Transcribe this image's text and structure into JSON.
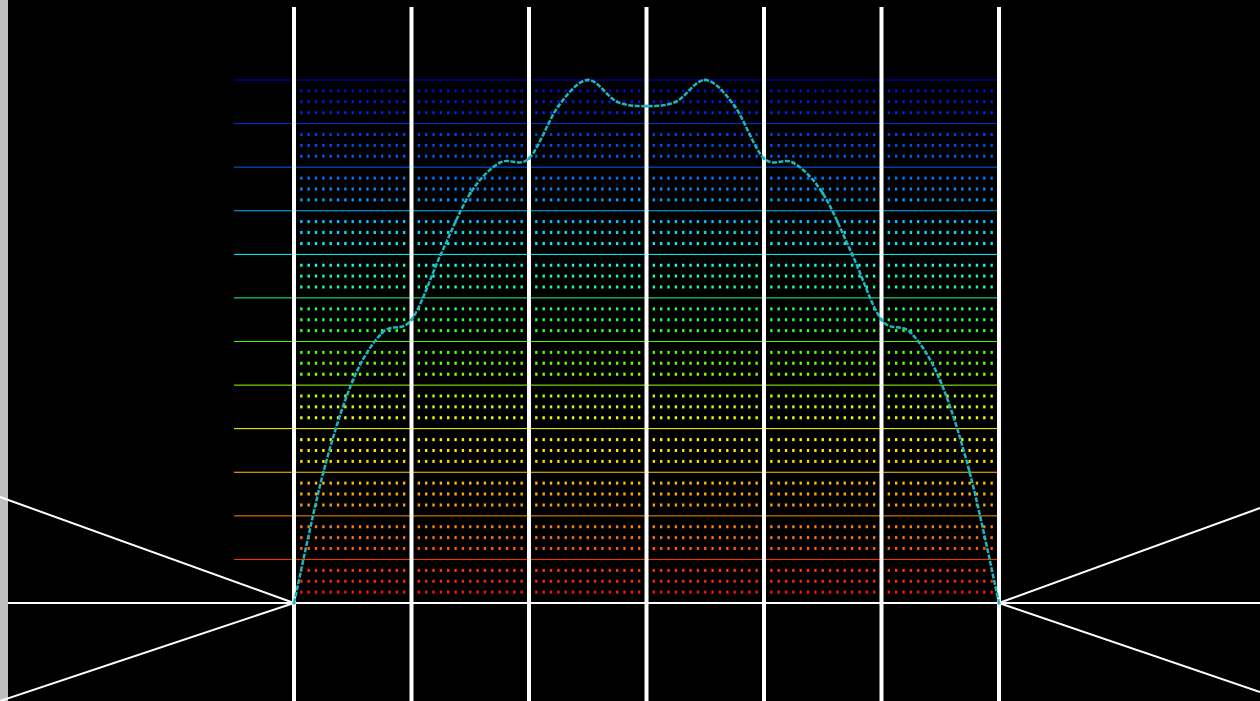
{
  "chart_data": {
    "type": "line",
    "title": "",
    "xlabel": "",
    "ylabel": "",
    "xlim": [
      0,
      6
    ],
    "ylim": [
      0,
      12
    ],
    "grid": true,
    "x_major_ticks": [
      0,
      1,
      2,
      3,
      4,
      5,
      6
    ],
    "y_major_ticks": [
      0,
      1,
      2,
      3,
      4,
      5,
      6,
      7,
      8,
      9,
      10,
      11,
      12
    ],
    "y_minor_per_major": 4,
    "x_minor_dots_per_major": 16,
    "grid_colormap": [
      "#ff0000",
      "#ff8c00",
      "#ffff00",
      "#33ff00",
      "#00ffff",
      "#0060ff",
      "#0000cc"
    ],
    "series": [
      {
        "color": "#1fb5bf",
        "x": [
          0,
          0.25,
          0.5,
          0.75,
          1.0,
          1.25,
          1.5,
          1.75,
          2.0,
          2.25,
          2.5,
          2.75,
          3.0,
          3.25,
          3.5,
          3.75,
          4.0,
          4.25,
          4.5,
          4.75,
          5.0,
          5.25,
          5.5,
          5.75,
          6.0
        ],
        "y": [
          0,
          3.0,
          5.1,
          6.2,
          6.5,
          8.0,
          9.4,
          10.1,
          10.2,
          11.4,
          12.0,
          11.5,
          11.4,
          11.5,
          12.0,
          11.4,
          10.2,
          10.1,
          9.4,
          8.0,
          6.5,
          6.2,
          5.1,
          3.0,
          0
        ]
      }
    ]
  },
  "frame": {
    "left_wedge_color": "#ffffff",
    "right_wedge_color": "#ffffff",
    "axis_color": "#ffffff"
  }
}
